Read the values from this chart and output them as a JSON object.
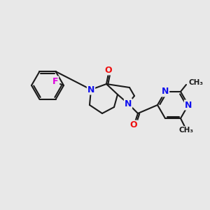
{
  "background_color": "#e8e8e8",
  "bond_color": "#1a1a1a",
  "bond_width": 1.5,
  "atom_colors": {
    "N": "#1010ee",
    "O": "#ee1010",
    "F": "#dd00dd",
    "C": "#1a1a1a"
  },
  "font_size": 9,
  "fig_size": [
    3.0,
    3.0
  ],
  "dpi": 100
}
